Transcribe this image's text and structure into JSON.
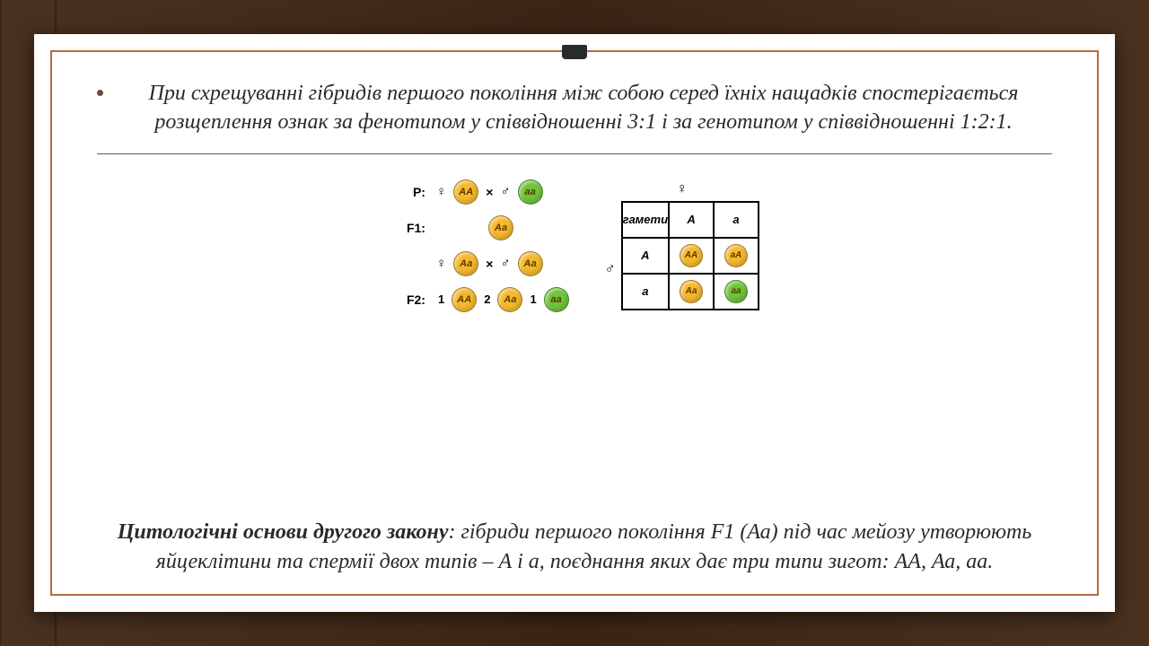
{
  "colors": {
    "dominant": "#f5b92e",
    "recessive": "#6fc43a",
    "frame": "#b56a3c",
    "text": "#2a2a2a"
  },
  "top_paragraph": "При схрещуванні гібридів першого покоління між собою серед їхніх нащадків спостерігається розщеплення ознак за фенотипом у співвідношенні 3:1 і за генотипом у співвідношенні 1:2:1.",
  "cross": {
    "P_label": "P:",
    "F1_label": "F1:",
    "F2_label": "F2:",
    "female": "♀",
    "male": "♂",
    "times": "×",
    "P_mother": "АА",
    "P_father": "аа",
    "F1_geno": "Аа",
    "F2": [
      {
        "ratio": "1",
        "geno": "АА",
        "color": "dominant"
      },
      {
        "ratio": "2",
        "geno": "Аа",
        "color": "dominant"
      },
      {
        "ratio": "1",
        "geno": "аа",
        "color": "recessive"
      }
    ]
  },
  "punnett": {
    "gametes_label": "гамети",
    "cols": [
      "А",
      "а"
    ],
    "rows": [
      "А",
      "а"
    ],
    "cells": [
      [
        {
          "geno": "АА",
          "color": "dominant"
        },
        {
          "geno": "аА",
          "color": "dominant"
        }
      ],
      [
        {
          "geno": "Аа",
          "color": "dominant"
        },
        {
          "geno": "аа",
          "color": "recessive"
        }
      ]
    ]
  },
  "bottom": {
    "bold": "Цитологічні основи другого закону",
    "rest": ": гібриди першого покоління F1 (Аа) під час мейозу утворюють яйцеклітини та спермії двох типів – А і а, поєднання яких дає три типи зигот: АА, Аа, аа."
  }
}
